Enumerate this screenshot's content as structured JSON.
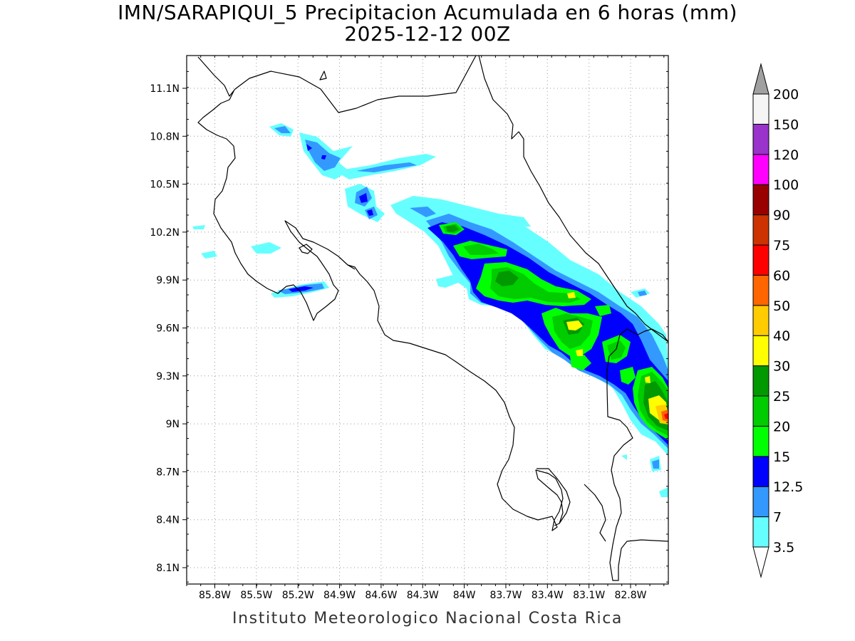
{
  "title": {
    "line1": "IMN/SARAPIQUI_5 Precipitacion Acumulada en 6 horas (mm)",
    "line2": "2025-12-12 00Z"
  },
  "footer": "Instituto Meteorologico Nacional Costa Rica",
  "axes": {
    "x_ticks": [
      "85.8W",
      "85.5W",
      "85.2W",
      "84.9W",
      "84.6W",
      "84.3W",
      "84W",
      "83.7W",
      "83.4W",
      "83.1W",
      "82.8W"
    ],
    "y_ticks": [
      "11.1N",
      "10.8N",
      "10.5N",
      "10.2N",
      "9.9N",
      "9.6N",
      "9.3N",
      "9N",
      "8.7N",
      "8.4N",
      "8.1N"
    ]
  },
  "colorbar": {
    "levels": [
      "3.5",
      "7",
      "12.5",
      "15",
      "20",
      "25",
      "30",
      "40",
      "50",
      "60",
      "75",
      "90",
      "100",
      "120",
      "150",
      "200"
    ],
    "colors": [
      "#66ffff",
      "#3399ff",
      "#0000ff",
      "#00ff00",
      "#00cc00",
      "#009900",
      "#ffff00",
      "#ffcc00",
      "#ff6600",
      "#ff0000",
      "#cc3300",
      "#990000",
      "#ff00ff",
      "#9933cc",
      "#f5f5f5"
    ],
    "over_color": "#a0a0a0",
    "under_color": "#ffffff"
  },
  "precip_colors": {
    "light": "#66ffff",
    "moderate": "#3399ff",
    "dark_blue": "#0000ff",
    "green_light": "#00ff00",
    "green": "#00cc00",
    "green_dark": "#009900",
    "yellow": "#ffff00",
    "orange": "#ffcc00",
    "red": "#ff3300"
  }
}
